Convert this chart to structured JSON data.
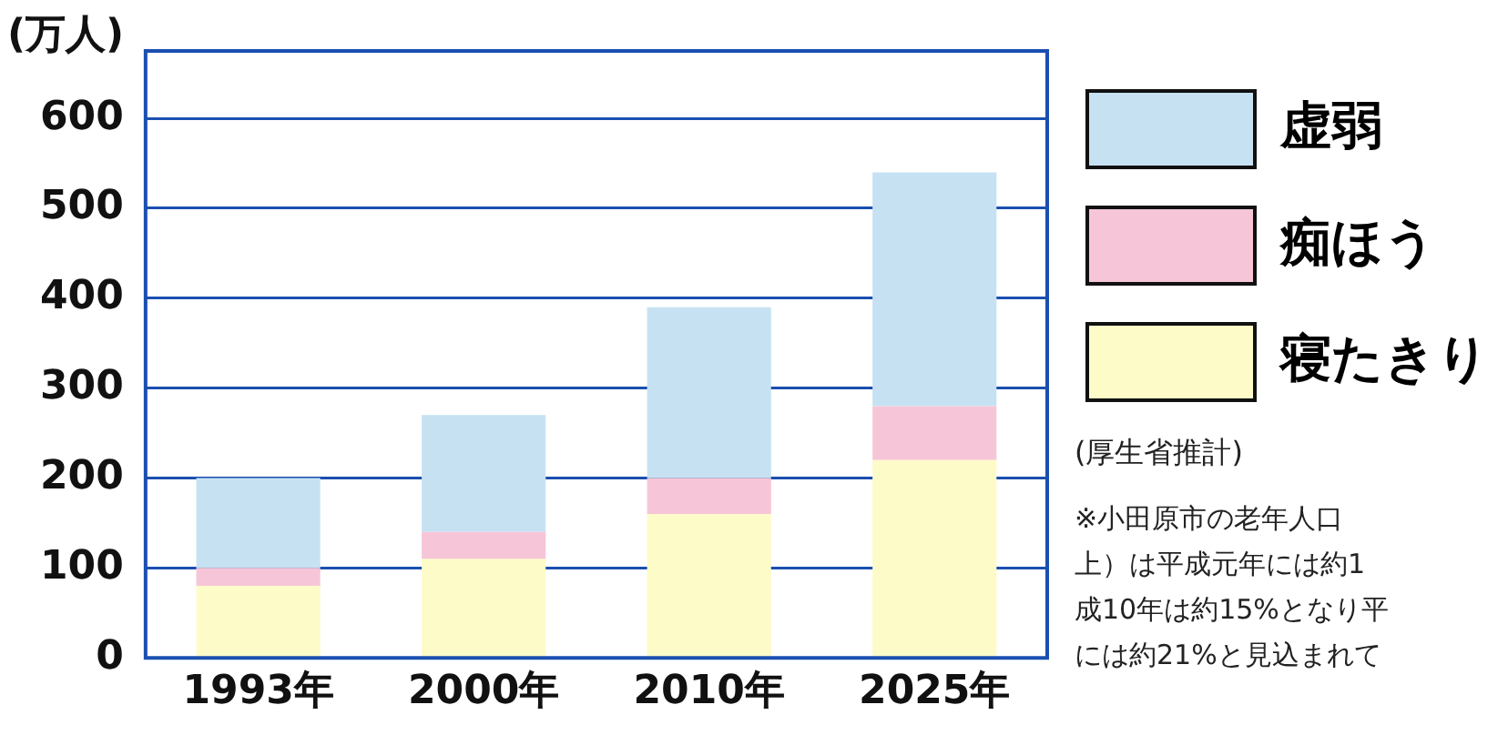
{
  "chart_data": {
    "type": "bar",
    "stacked": true,
    "ylabel": "(万人)",
    "categories": [
      "1993年",
      "2000年",
      "2010年",
      "2025年"
    ],
    "series": [
      {
        "name": "寝たきり",
        "color": "#fdfbc8",
        "values": [
          80,
          110,
          160,
          220
        ]
      },
      {
        "name": "痴ほう",
        "color": "#f6c6d8",
        "values": [
          20,
          30,
          40,
          60
        ]
      },
      {
        "name": "虚弱",
        "color": "#c6e2f2",
        "values": [
          100,
          130,
          190,
          260
        ]
      }
    ],
    "ylim": [
      0,
      675
    ],
    "yticks": [
      0,
      100,
      200,
      300,
      400,
      500,
      600
    ],
    "grid": "y",
    "legend": "right",
    "annotations": [
      "(厚生省推計)",
      "※小田原市の老年人口",
      "上）は平成元年には約1",
      "成10年は約15%となり平",
      "には約21%と見込まれて"
    ]
  }
}
